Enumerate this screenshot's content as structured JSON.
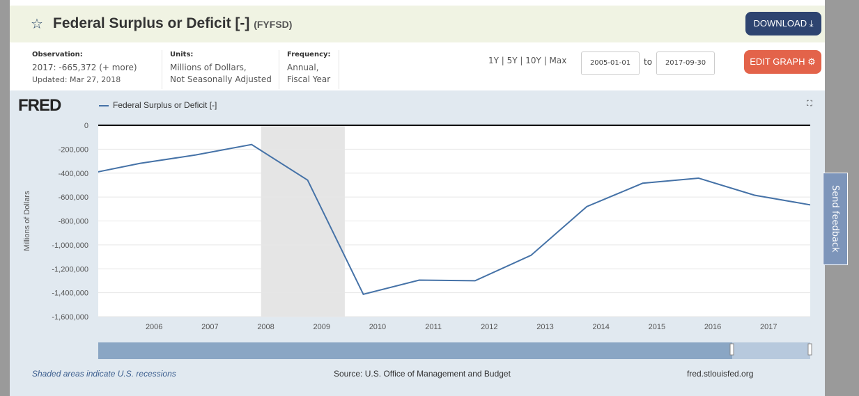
{
  "header": {
    "title": "Federal Surplus or Deficit [-]",
    "series_id": "(FYFSD)",
    "download_label": "DOWNLOAD ⤓",
    "edit_label": "EDIT GRAPH ⚙"
  },
  "meta": {
    "observation_label": "Observation:",
    "observation_value": "2017: -665,372",
    "more": "(+ more)",
    "updated": "Updated: Mar 27, 2018",
    "units_label": "Units:",
    "units_1": "Millions of Dollars,",
    "units_2": "Not Seasonally Adjusted",
    "freq_label": "Frequency:",
    "freq_1": "Annual,",
    "freq_2": "Fiscal Year"
  },
  "range": {
    "options": "1Y | 5Y | 10Y | Max",
    "start": "2005-01-01",
    "to": "to",
    "end": "2017-09-30"
  },
  "graph": {
    "logo": "FRED",
    "legend": "Federal Surplus or Deficit [-]",
    "recession_note": "Shaded areas indicate U.S. recessions",
    "source": "Source: U.S. Office of Management and Budget",
    "site": "fred.stlouisfed.org"
  },
  "feedback": "Send feedback",
  "chart_data": {
    "type": "line",
    "ylabel": "Millions of Dollars",
    "xlim": [
      "2005-01-01",
      "2017-09-30"
    ],
    "ylim": [
      -1600000,
      0
    ],
    "yticks": [
      0,
      -200000,
      -400000,
      -600000,
      -800000,
      -1000000,
      -1200000,
      -1400000,
      -1600000
    ],
    "ytick_labels": [
      "0",
      "-200,000",
      "-400,000",
      "-600,000",
      "-800,000",
      "-1,000,000",
      "-1,200,000",
      "-1,400,000",
      "-1,600,000"
    ],
    "xticks": [
      "2006",
      "2007",
      "2008",
      "2009",
      "2010",
      "2011",
      "2012",
      "2013",
      "2014",
      "2015",
      "2016",
      "2017"
    ],
    "recessions": [
      [
        "2007-12-01",
        "2009-06-01"
      ]
    ],
    "color": "#4572a7",
    "series": [
      {
        "name": "Federal Surplus or Deficit [-]",
        "x": [
          "2004-09-30",
          "2005-09-30",
          "2006-09-30",
          "2007-09-30",
          "2008-09-30",
          "2009-09-30",
          "2010-09-30",
          "2011-09-30",
          "2012-09-30",
          "2013-09-30",
          "2014-09-30",
          "2015-09-30",
          "2016-09-30",
          "2017-09-30"
        ],
        "values": [
          -412727,
          -318346,
          -248181,
          -160701,
          -458553,
          -1412688,
          -1294373,
          -1299599,
          -1087024,
          -679775,
          -484602,
          -441960,
          -584651,
          -665372
        ]
      }
    ]
  }
}
